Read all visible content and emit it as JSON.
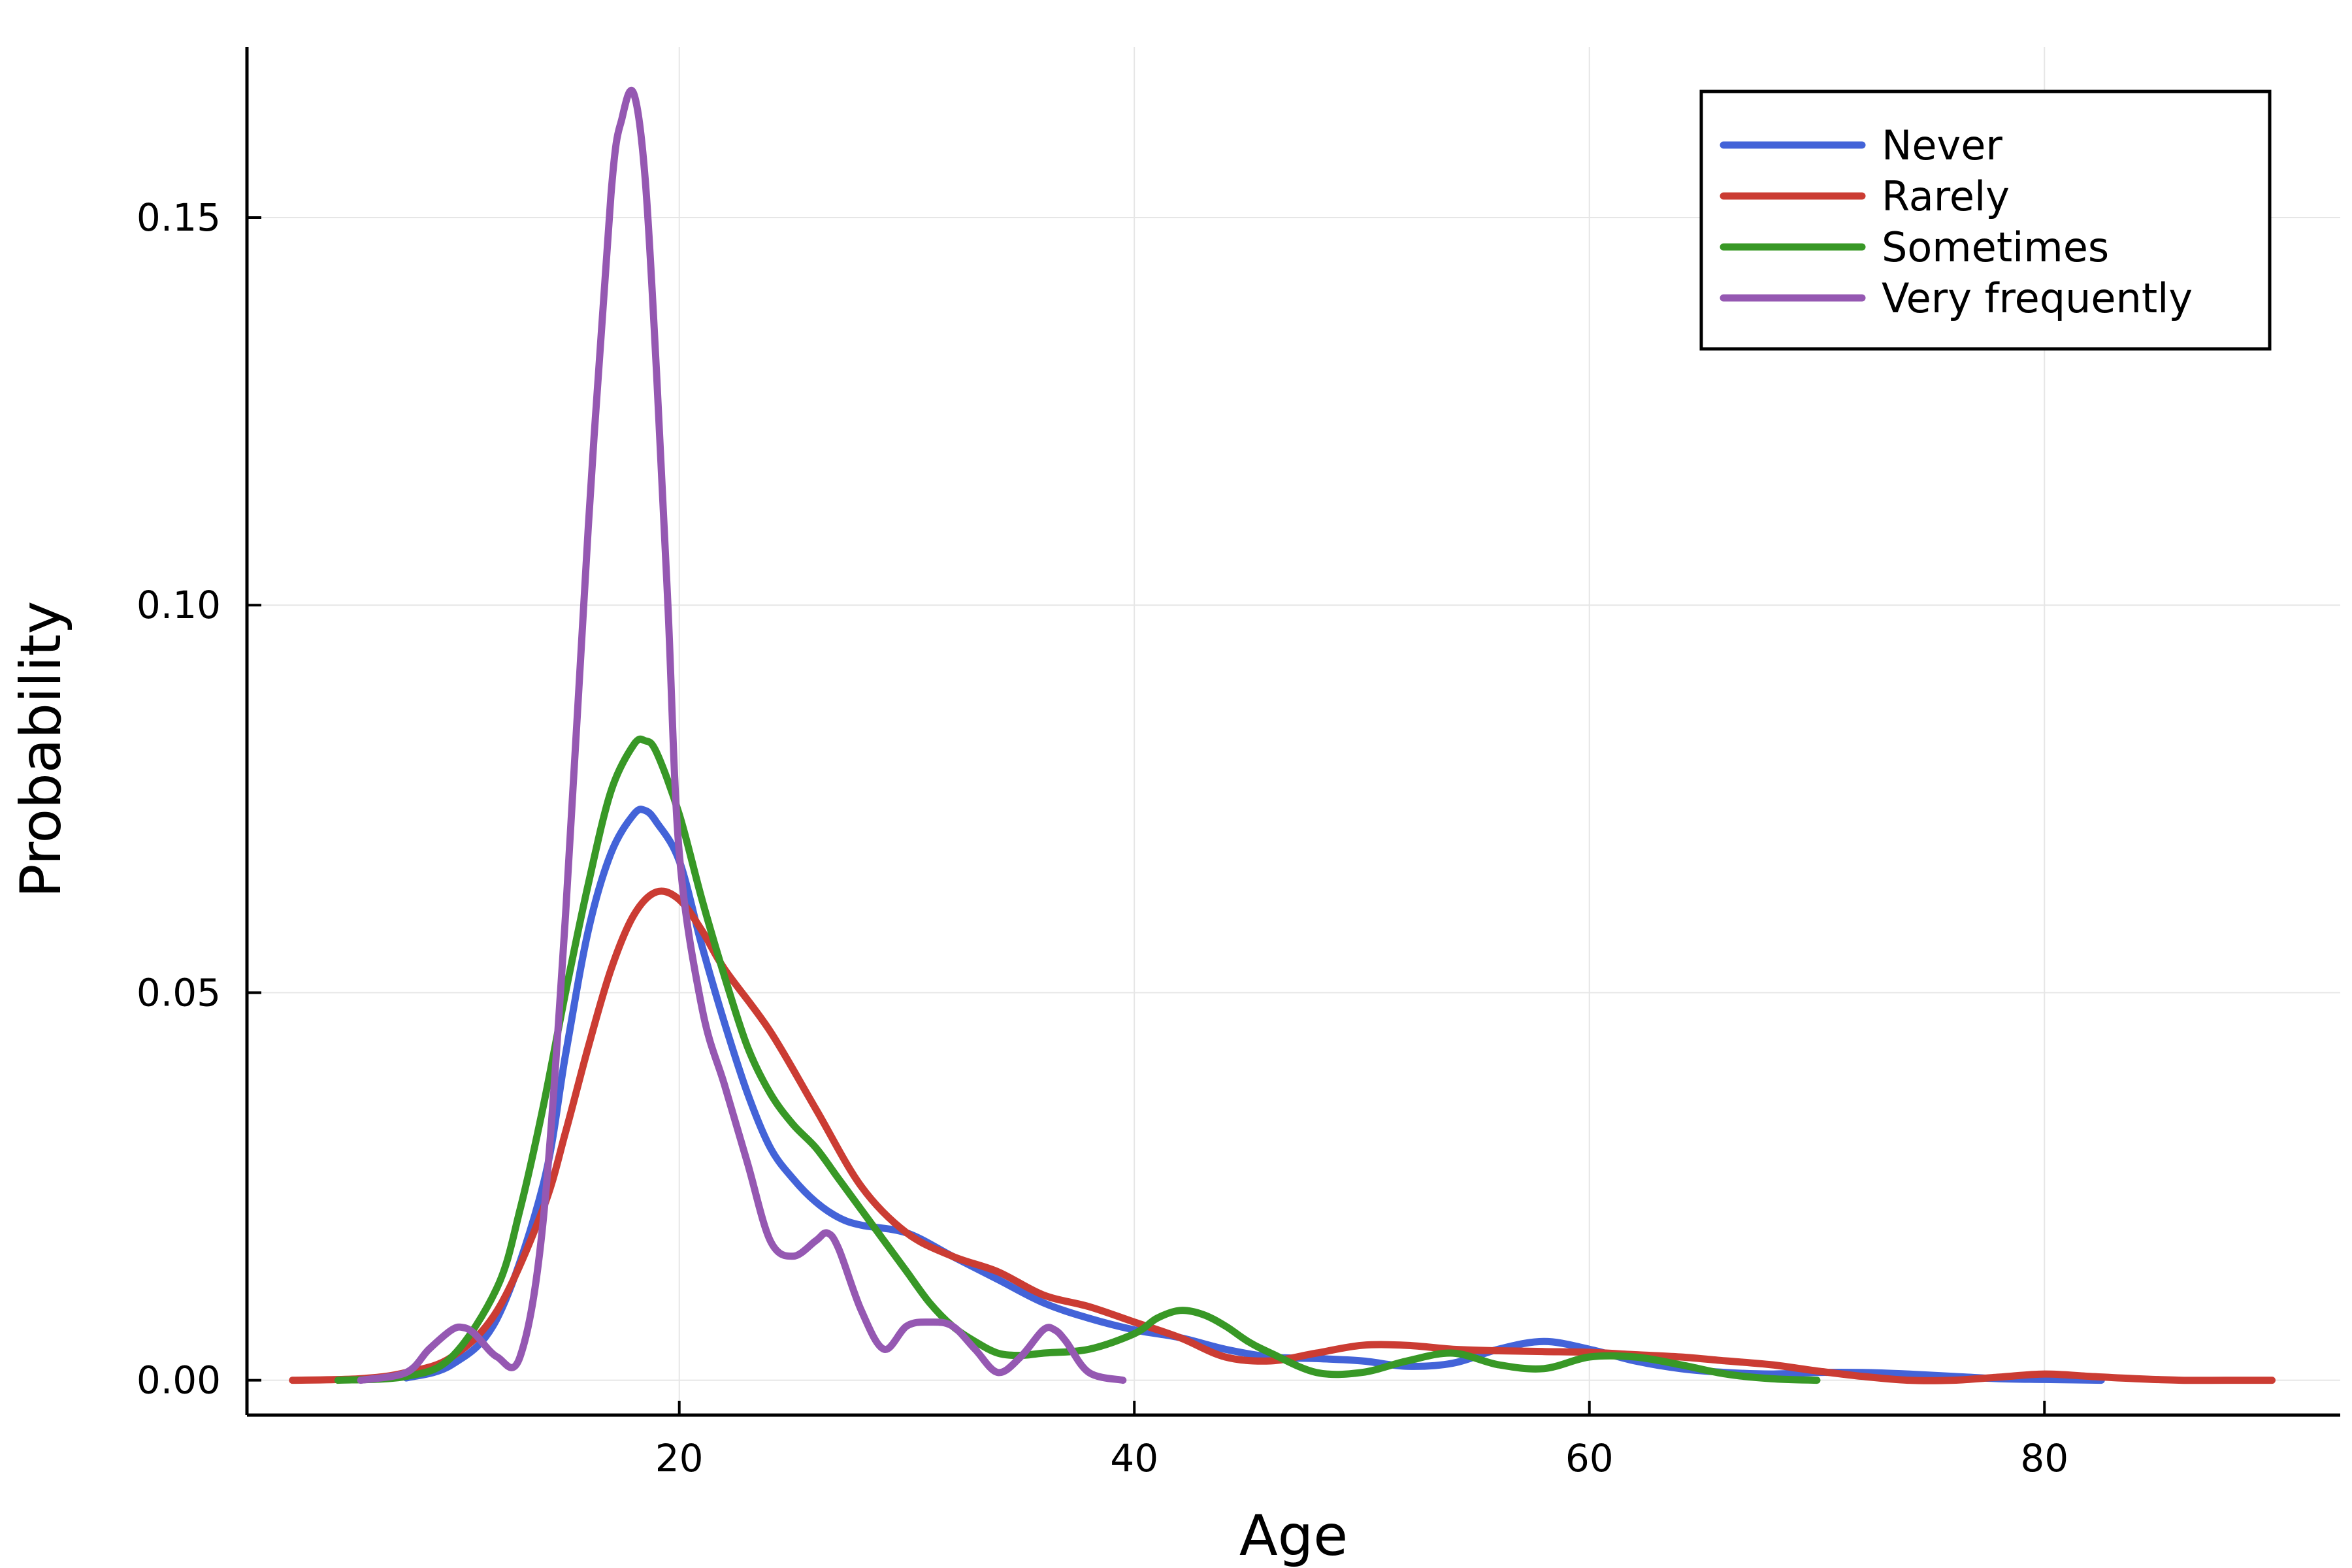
{
  "chart_data": {
    "type": "line",
    "title": "",
    "xlabel": "Age",
    "ylabel": "Probability",
    "xlim": [
      1,
      93
    ],
    "ylim": [
      -0.0045,
      0.172
    ],
    "xticks": [
      20,
      40,
      60,
      80
    ],
    "xtick_labels": [
      "20",
      "40",
      "60",
      "80"
    ],
    "yticks": [
      0.0,
      0.05,
      0.1,
      0.15
    ],
    "ytick_labels": [
      "0.00",
      "0.05",
      "0.10",
      "0.15"
    ],
    "grid": true,
    "legend_position": "top-right",
    "series": [
      {
        "name": "Never",
        "color": "#4363d8",
        "x": [
          8,
          10,
          12,
          14,
          15,
          16,
          17,
          18,
          18.5,
          19,
          20,
          21,
          22,
          23,
          24,
          25,
          26,
          27,
          28,
          30,
          32,
          34,
          36,
          38,
          40,
          42,
          44,
          46,
          48,
          50,
          52,
          54,
          56,
          58,
          60,
          62,
          64,
          66,
          68,
          70,
          72,
          74,
          76,
          78,
          80,
          82.5
        ],
        "y": [
          0.0003,
          0.002,
          0.008,
          0.025,
          0.042,
          0.058,
          0.068,
          0.073,
          0.0735,
          0.072,
          0.067,
          0.056,
          0.046,
          0.037,
          0.03,
          0.026,
          0.023,
          0.021,
          0.02,
          0.019,
          0.016,
          0.013,
          0.01,
          0.008,
          0.0065,
          0.0055,
          0.004,
          0.003,
          0.0028,
          0.0025,
          0.0018,
          0.0022,
          0.004,
          0.005,
          0.004,
          0.0025,
          0.0015,
          0.001,
          0.0008,
          0.001,
          0.001,
          0.0008,
          0.0005,
          0.0002,
          0.0001,
          0.0
        ]
      },
      {
        "name": "Rarely",
        "color": "#cb3c33",
        "x": [
          3,
          6,
          8,
          10,
          12,
          14,
          15,
          16,
          17,
          18,
          19,
          20,
          21,
          22,
          24,
          26,
          28,
          30,
          32,
          34,
          36,
          38,
          40,
          42,
          44,
          46,
          48,
          50,
          52,
          54,
          56,
          58,
          60,
          62,
          64,
          66,
          68,
          70,
          72,
          74,
          76,
          78,
          80,
          82,
          84,
          86,
          88,
          90
        ],
        "y": [
          0.0,
          0.0002,
          0.001,
          0.003,
          0.009,
          0.022,
          0.032,
          0.043,
          0.053,
          0.06,
          0.063,
          0.062,
          0.058,
          0.053,
          0.045,
          0.035,
          0.025,
          0.019,
          0.016,
          0.014,
          0.011,
          0.0095,
          0.0075,
          0.0055,
          0.003,
          0.0025,
          0.0035,
          0.0045,
          0.0045,
          0.004,
          0.0038,
          0.0037,
          0.0036,
          0.0033,
          0.003,
          0.0025,
          0.002,
          0.0012,
          0.0005,
          0.0,
          0.0,
          0.0004,
          0.0008,
          0.0005,
          0.0002,
          0.0,
          0.0,
          0.0
        ]
      },
      {
        "name": "Sometimes",
        "color": "#389826",
        "x": [
          5,
          8,
          10,
          12,
          13,
          14,
          15,
          16,
          17,
          18,
          18.5,
          19,
          20,
          21,
          22,
          23,
          24,
          25,
          26,
          27,
          28,
          29,
          30,
          31,
          32,
          33,
          34,
          35,
          36,
          38,
          40,
          41,
          42,
          43,
          44,
          45,
          46,
          48,
          50,
          52,
          54,
          56,
          58,
          60,
          62,
          64,
          66,
          68,
          70
        ],
        "y": [
          0.0,
          0.0005,
          0.003,
          0.012,
          0.022,
          0.035,
          0.05,
          0.064,
          0.076,
          0.082,
          0.0825,
          0.081,
          0.073,
          0.062,
          0.052,
          0.043,
          0.037,
          0.033,
          0.03,
          0.026,
          0.022,
          0.018,
          0.014,
          0.01,
          0.007,
          0.005,
          0.0035,
          0.0032,
          0.0035,
          0.004,
          0.006,
          0.008,
          0.009,
          0.0085,
          0.007,
          0.005,
          0.0035,
          0.001,
          0.001,
          0.0025,
          0.0035,
          0.002,
          0.0015,
          0.003,
          0.003,
          0.002,
          0.0008,
          0.0002,
          0.0
        ]
      },
      {
        "name": "Very frequently",
        "color": "#9558b2",
        "x": [
          6,
          8,
          9,
          10,
          10.5,
          11,
          12,
          13,
          14,
          15,
          16,
          17,
          17.5,
          18,
          18.5,
          19,
          19.5,
          20,
          21,
          22,
          23,
          24,
          25,
          26,
          26.5,
          27,
          28,
          29,
          30,
          31,
          32,
          33,
          34,
          35,
          36,
          36.5,
          37,
          38,
          39.5
        ],
        "y": [
          0.0,
          0.001,
          0.004,
          0.0065,
          0.0068,
          0.006,
          0.003,
          0.003,
          0.02,
          0.06,
          0.11,
          0.153,
          0.163,
          0.166,
          0.155,
          0.13,
          0.1,
          0.068,
          0.048,
          0.038,
          0.028,
          0.018,
          0.016,
          0.018,
          0.019,
          0.017,
          0.009,
          0.004,
          0.007,
          0.0075,
          0.007,
          0.004,
          0.001,
          0.003,
          0.0065,
          0.0065,
          0.005,
          0.001,
          0.0
        ]
      }
    ]
  }
}
